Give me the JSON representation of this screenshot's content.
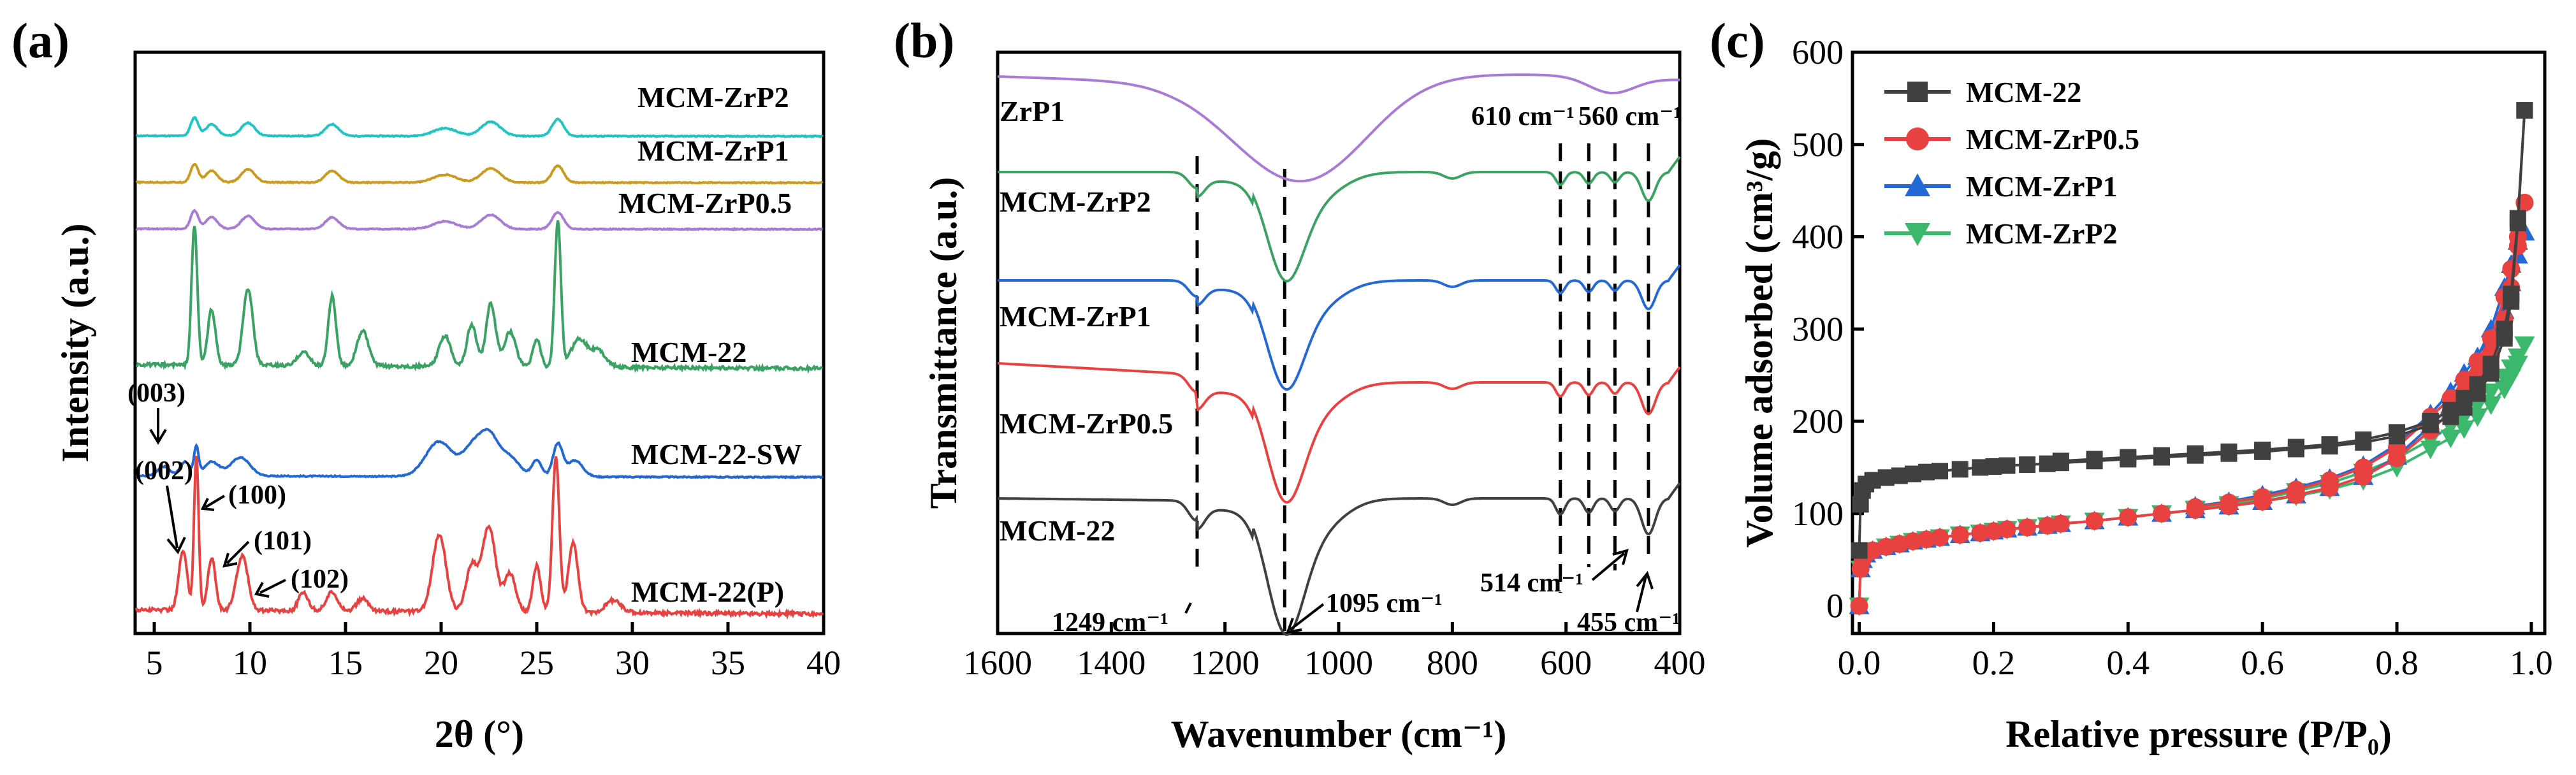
{
  "colors": {
    "red": "#e8413f",
    "blue": "#2468d6",
    "green": "#3aa263",
    "purple": "#a77bd6",
    "gold": "#c99a1e",
    "teal": "#1fc4c4",
    "dark": "#404040",
    "green_legend": "#3cb86c"
  },
  "chart_data": [
    {
      "type": "line",
      "panel": "(a)",
      "xlabel": "2θ (°)",
      "ylabel": "Intensity (a.u.)",
      "xlim": [
        4,
        40
      ],
      "xticks": [
        "5",
        "10",
        "15",
        "20",
        "25",
        "30",
        "35",
        "40"
      ],
      "x_tick_values": [
        5,
        10,
        15,
        20,
        25,
        30,
        35,
        40
      ],
      "peaks_2theta": [
        6.5,
        7.2,
        8.0,
        9.6,
        10.0,
        12.8,
        14.3,
        15.9,
        19.9,
        21.6,
        22.5,
        23.6,
        25.0,
        26.0,
        26.9,
        29.0
      ],
      "series": [
        {
          "name": "MCM-ZrP2",
          "offset": 0.925,
          "scale": 0.05,
          "color_key": "teal"
        },
        {
          "name": "MCM-ZrP1",
          "offset": 0.835,
          "scale": 0.05,
          "color_key": "gold"
        },
        {
          "name": "MCM-ZrP0.5",
          "offset": 0.745,
          "scale": 0.05,
          "color_key": "purple"
        },
        {
          "name": "MCM-22",
          "offset": 0.475,
          "scale": 0.27,
          "color_key": "green"
        },
        {
          "name": "MCM-22-SW",
          "offset": 0.265,
          "scale": 0.09,
          "color_key": "blue"
        },
        {
          "name": "MCM-22(P)",
          "offset": 0.0,
          "scale": 0.3,
          "color_key": "red"
        }
      ],
      "annotations": [
        "(003)",
        "(002)",
        "(100)",
        "(101)",
        "(102)"
      ]
    },
    {
      "type": "line",
      "panel": "(b)",
      "xlabel": "Wavenumber (cm⁻¹)",
      "ylabel": "Transmittance (a.u.)",
      "xlim": [
        1600,
        400
      ],
      "xticks": [
        "1600",
        "1400",
        "1200",
        "1000",
        "800",
        "600",
        "400"
      ],
      "x_tick_values": [
        1600,
        1400,
        1200,
        1000,
        800,
        600,
        400
      ],
      "band_positions": [
        1249,
        1095,
        610,
        560,
        514,
        455
      ],
      "series": [
        {
          "name": "ZrP1",
          "color_key": "purple"
        },
        {
          "name": "MCM-ZrP2",
          "color_key": "green"
        },
        {
          "name": "MCM-ZrP1",
          "color_key": "blue"
        },
        {
          "name": "MCM-ZrP0.5",
          "color_key": "red"
        },
        {
          "name": "MCM-22",
          "color_key": "dark"
        }
      ],
      "annotations": [
        "1249 cm⁻¹",
        "1095 cm⁻¹",
        "610 cm⁻¹",
        "560 cm⁻¹",
        "514 cm⁻¹",
        "455 cm⁻¹"
      ]
    },
    {
      "type": "line",
      "panel": "(c)",
      "xlabel": "Relative pressure (P/P₀)",
      "ylabel": "Volume adsorbed (cm³/g)",
      "xlim": [
        -0.01,
        1.02
      ],
      "ylim": [
        -30,
        600
      ],
      "xticks": [
        "0.0",
        "0.2",
        "0.4",
        "0.6",
        "0.8",
        "1.0"
      ],
      "x_tick_values": [
        0.0,
        0.2,
        0.4,
        0.6,
        0.8,
        1.0
      ],
      "yticks": [
        "0",
        "100",
        "200",
        "300",
        "400",
        "500",
        "600"
      ],
      "y_tick_values": [
        0,
        100,
        200,
        300,
        400,
        500,
        600
      ],
      "legend_position": "top-left",
      "series": [
        {
          "name": "MCM-22",
          "marker": "square",
          "color_key": "dark",
          "adsorption": [
            [
              0.0,
              60
            ],
            [
              0.002,
              110
            ],
            [
              0.005,
              125
            ],
            [
              0.01,
              132
            ],
            [
              0.02,
              136
            ],
            [
              0.04,
              139
            ],
            [
              0.06,
              141
            ],
            [
              0.08,
              143
            ],
            [
              0.1,
              145
            ],
            [
              0.12,
              146
            ],
            [
              0.15,
              148
            ],
            [
              0.18,
              150
            ],
            [
              0.2,
              151
            ],
            [
              0.22,
              152
            ],
            [
              0.25,
              153
            ],
            [
              0.28,
              154
            ],
            [
              0.3,
              155
            ],
            [
              0.35,
              157
            ],
            [
              0.4,
              159
            ],
            [
              0.45,
              161
            ],
            [
              0.5,
              163
            ],
            [
              0.55,
              165
            ],
            [
              0.6,
              167
            ],
            [
              0.65,
              170
            ],
            [
              0.7,
              173
            ],
            [
              0.75,
              177
            ],
            [
              0.8,
              184
            ],
            [
              0.85,
              196
            ],
            [
              0.88,
              205
            ],
            [
              0.9,
              215
            ],
            [
              0.92,
              230
            ],
            [
              0.94,
              252
            ],
            [
              0.96,
              290
            ],
            [
              0.97,
              330
            ],
            [
              0.98,
              415
            ],
            [
              0.99,
              537
            ]
          ],
          "desorption": [
            [
              0.99,
              537
            ],
            [
              0.98,
              420
            ],
            [
              0.97,
              338
            ],
            [
              0.96,
              300
            ],
            [
              0.94,
              262
            ],
            [
              0.92,
              240
            ],
            [
              0.9,
              225
            ],
            [
              0.88,
              212
            ],
            [
              0.85,
              200
            ],
            [
              0.8,
              188
            ],
            [
              0.75,
              180
            ],
            [
              0.7,
              175
            ],
            [
              0.65,
              172
            ],
            [
              0.6,
              169
            ],
            [
              0.55,
              167
            ],
            [
              0.5,
              165
            ],
            [
              0.45,
              163
            ],
            [
              0.4,
              161
            ],
            [
              0.35,
              159
            ],
            [
              0.3,
              157
            ]
          ]
        },
        {
          "name": "MCM-ZrP0.5",
          "marker": "circle",
          "color_key": "red",
          "adsorption": [
            [
              0.0,
              0
            ],
            [
              0.002,
              40
            ],
            [
              0.005,
              50
            ],
            [
              0.01,
              56
            ],
            [
              0.02,
              60
            ],
            [
              0.04,
              64
            ],
            [
              0.06,
              67
            ],
            [
              0.08,
              70
            ],
            [
              0.1,
              72
            ],
            [
              0.12,
              74
            ],
            [
              0.15,
              77
            ],
            [
              0.18,
              79
            ],
            [
              0.2,
              81
            ],
            [
              0.22,
              83
            ],
            [
              0.25,
              85
            ],
            [
              0.28,
              87
            ],
            [
              0.3,
              89
            ],
            [
              0.35,
              92
            ],
            [
              0.4,
              96
            ],
            [
              0.45,
              100
            ],
            [
              0.5,
              104
            ],
            [
              0.55,
              108
            ],
            [
              0.6,
              113
            ],
            [
              0.65,
              120
            ],
            [
              0.7,
              128
            ],
            [
              0.75,
              140
            ],
            [
              0.8,
              160
            ],
            [
              0.85,
              190
            ],
            [
              0.88,
              210
            ],
            [
              0.9,
              230
            ],
            [
              0.92,
              250
            ],
            [
              0.94,
              272
            ],
            [
              0.96,
              310
            ],
            [
              0.97,
              345
            ],
            [
              0.98,
              390
            ],
            [
              0.99,
              437
            ]
          ],
          "desorption": [
            [
              0.99,
              437
            ],
            [
              0.98,
              400
            ],
            [
              0.97,
              365
            ],
            [
              0.96,
              335
            ],
            [
              0.94,
              290
            ],
            [
              0.92,
              265
            ],
            [
              0.9,
              245
            ],
            [
              0.88,
              225
            ],
            [
              0.85,
              205
            ],
            [
              0.8,
              172
            ],
            [
              0.75,
              150
            ],
            [
              0.7,
              136
            ],
            [
              0.65,
              126
            ],
            [
              0.6,
              118
            ],
            [
              0.55,
              112
            ],
            [
              0.5,
              107
            ]
          ]
        },
        {
          "name": "MCM-ZrP1",
          "marker": "triangle-up",
          "color_key": "blue",
          "adsorption": [
            [
              0.0,
              0
            ],
            [
              0.002,
              40
            ],
            [
              0.005,
              50
            ],
            [
              0.01,
              56
            ],
            [
              0.02,
              60
            ],
            [
              0.04,
              64
            ],
            [
              0.06,
              67
            ],
            [
              0.08,
              70
            ],
            [
              0.1,
              72
            ],
            [
              0.12,
              74
            ],
            [
              0.15,
              77
            ],
            [
              0.18,
              79
            ],
            [
              0.2,
              81
            ],
            [
              0.22,
              83
            ],
            [
              0.25,
              85
            ],
            [
              0.28,
              87
            ],
            [
              0.3,
              89
            ],
            [
              0.35,
              92
            ],
            [
              0.4,
              96
            ],
            [
              0.45,
              100
            ],
            [
              0.5,
              104
            ],
            [
              0.55,
              108
            ],
            [
              0.6,
              113
            ],
            [
              0.65,
              120
            ],
            [
              0.7,
              128
            ],
            [
              0.75,
              140
            ],
            [
              0.8,
              162
            ],
            [
              0.85,
              195
            ],
            [
              0.88,
              218
            ],
            [
              0.9,
              240
            ],
            [
              0.92,
              260
            ],
            [
              0.94,
              285
            ],
            [
              0.96,
              320
            ],
            [
              0.97,
              350
            ],
            [
              0.98,
              380
            ],
            [
              0.99,
              405
            ]
          ],
          "desorption": [
            [
              0.99,
              405
            ],
            [
              0.98,
              395
            ],
            [
              0.97,
              370
            ],
            [
              0.96,
              345
            ],
            [
              0.94,
              300
            ],
            [
              0.92,
              270
            ],
            [
              0.9,
              252
            ],
            [
              0.88,
              232
            ],
            [
              0.85,
              208
            ],
            [
              0.8,
              175
            ],
            [
              0.75,
              152
            ],
            [
              0.7,
              138
            ],
            [
              0.65,
              128
            ],
            [
              0.6,
              120
            ],
            [
              0.55,
              113
            ],
            [
              0.5,
              108
            ]
          ]
        },
        {
          "name": "MCM-ZrP2",
          "marker": "triangle-down",
          "color_key": "green_legend",
          "adsorption": [
            [
              0.0,
              0
            ],
            [
              0.002,
              40
            ],
            [
              0.005,
              50
            ],
            [
              0.01,
              56
            ],
            [
              0.02,
              60
            ],
            [
              0.04,
              64
            ],
            [
              0.06,
              67
            ],
            [
              0.08,
              70
            ],
            [
              0.1,
              72
            ],
            [
              0.12,
              74
            ],
            [
              0.15,
              77
            ],
            [
              0.18,
              79
            ],
            [
              0.2,
              81
            ],
            [
              0.22,
              83
            ],
            [
              0.25,
              85
            ],
            [
              0.28,
              87
            ],
            [
              0.3,
              89
            ],
            [
              0.35,
              92
            ],
            [
              0.4,
              96
            ],
            [
              0.45,
              100
            ],
            [
              0.5,
              104
            ],
            [
              0.55,
              108
            ],
            [
              0.6,
              113
            ],
            [
              0.65,
              119
            ],
            [
              0.7,
              126
            ],
            [
              0.75,
              136
            ],
            [
              0.8,
              150
            ],
            [
              0.85,
              170
            ],
            [
              0.88,
              182
            ],
            [
              0.9,
              192
            ],
            [
              0.92,
              205
            ],
            [
              0.94,
              218
            ],
            [
              0.96,
              235
            ],
            [
              0.97,
              248
            ],
            [
              0.98,
              262
            ],
            [
              0.99,
              283
            ]
          ],
          "desorption": [
            [
              0.99,
              283
            ],
            [
              0.98,
              270
            ],
            [
              0.97,
              258
            ],
            [
              0.96,
              248
            ],
            [
              0.94,
              232
            ],
            [
              0.92,
              218
            ],
            [
              0.9,
              205
            ],
            [
              0.88,
              195
            ],
            [
              0.85,
              180
            ],
            [
              0.8,
              160
            ],
            [
              0.75,
              145
            ],
            [
              0.7,
              133
            ],
            [
              0.65,
              124
            ],
            [
              0.6,
              116
            ],
            [
              0.55,
              110
            ],
            [
              0.5,
              105
            ]
          ]
        }
      ]
    }
  ]
}
